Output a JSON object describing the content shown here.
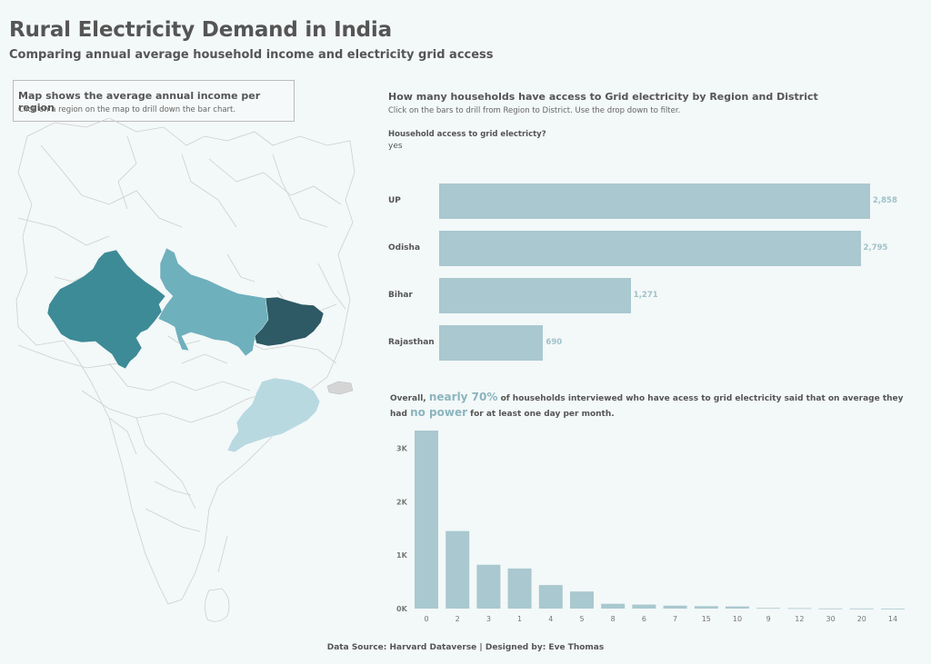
{
  "header": {
    "title": "Rural Electricity Demand in India",
    "subtitle": "Comparing annual average household income and electricity grid access"
  },
  "map_panel": {
    "heading": "Map shows the average annual income per region",
    "instruction": "Click on a region on the map to drill down the bar chart.",
    "colors": {
      "rajasthan": "#3d8b97",
      "up": "#6fb0bd",
      "bihar": "#2d5a65",
      "odisha": "#b9d9e1",
      "base": "#f3f8f8",
      "borders": "#cccccc"
    }
  },
  "bar_panel": {
    "title": "How many households have access to Grid electricity by Region and District",
    "instruction": "Click on the bars to drill from Region to District. Use the drop down to filter.",
    "filter_label": "Household access to grid electricty?",
    "filter_value": "yes"
  },
  "insight": {
    "prefix": "Overall,",
    "highlight1": "nearly 70%",
    "middle": "of households interviewed who have acess to grid electricity said that on average they had",
    "highlight2": "no power",
    "suffix": "for at least one day per month."
  },
  "chart_data": [
    {
      "type": "bar",
      "orientation": "horizontal",
      "categories": [
        "UP",
        "Odisha",
        "Bihar",
        "Rajasthan"
      ],
      "values": [
        2858,
        2795,
        1271,
        690
      ],
      "value_labels": [
        "2,858",
        "2,795",
        "1,271",
        "690"
      ],
      "color": "#a9c8cf"
    },
    {
      "type": "bar",
      "categories": [
        "0",
        "2",
        "3",
        "1",
        "4",
        "5",
        "8",
        "6",
        "7",
        "15",
        "10",
        "9",
        "12",
        "30",
        "20",
        "14"
      ],
      "values": [
        3330,
        1450,
        820,
        750,
        440,
        320,
        90,
        75,
        55,
        45,
        40,
        12,
        8,
        3,
        2,
        1
      ],
      "y_ticks": [
        "3K",
        "2K",
        "1K",
        "0K"
      ],
      "y_tick_values": [
        3000,
        2000,
        1000,
        0
      ],
      "ylim": [
        0,
        3330
      ],
      "color": "#a9c8cf"
    }
  ],
  "footer": {
    "text": "Data Source: Harvard Dataverse |  Designed by: Eve Thomas"
  }
}
